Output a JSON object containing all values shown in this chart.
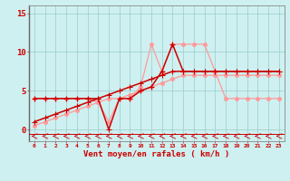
{
  "xlabel": "Vent moyen/en rafales ( km/h )",
  "bg_color": "#cff0f0",
  "grid_color": "#99cccc",
  "x_values": [
    0,
    1,
    2,
    3,
    4,
    5,
    6,
    7,
    8,
    9,
    10,
    11,
    12,
    13,
    14,
    15,
    16,
    17,
    18,
    19,
    20,
    21,
    22,
    23
  ],
  "line_dark1_y": [
    4,
    4,
    4,
    4,
    4,
    4,
    4,
    0,
    4,
    4,
    5,
    5.5,
    7.5,
    11,
    7.5,
    7.5,
    7.5,
    7.5,
    7.5,
    7.5,
    7.5,
    7.5,
    7.5,
    7.5
  ],
  "line_dark2_y": [
    1,
    1.5,
    2,
    2.5,
    3,
    3.5,
    4,
    4.5,
    5,
    5.5,
    6,
    6.5,
    7,
    7.5,
    7.5,
    7.5,
    7.5,
    7.5,
    7.5,
    7.5,
    7.5,
    7.5,
    7.5,
    7.5
  ],
  "line_light1_y": [
    4,
    4,
    4,
    4,
    4,
    4,
    3.5,
    1,
    4,
    4,
    5.5,
    11,
    7.5,
    11,
    11,
    11,
    11,
    7.5,
    4,
    4,
    4,
    4,
    4,
    4
  ],
  "line_light2_y": [
    0.5,
    1,
    1.5,
    2,
    2.5,
    3,
    3.5,
    4,
    4,
    4.5,
    5,
    5.5,
    6,
    6.5,
    7,
    7,
    7,
    7,
    7,
    7,
    7,
    7,
    7,
    7
  ],
  "line_color_dark": "#cc0000",
  "line_color_light": "#ff9999",
  "yticks": [
    0,
    5,
    10,
    15
  ],
  "ylim": [
    -1.5,
    16
  ],
  "xlim": [
    -0.5,
    23.5
  ]
}
